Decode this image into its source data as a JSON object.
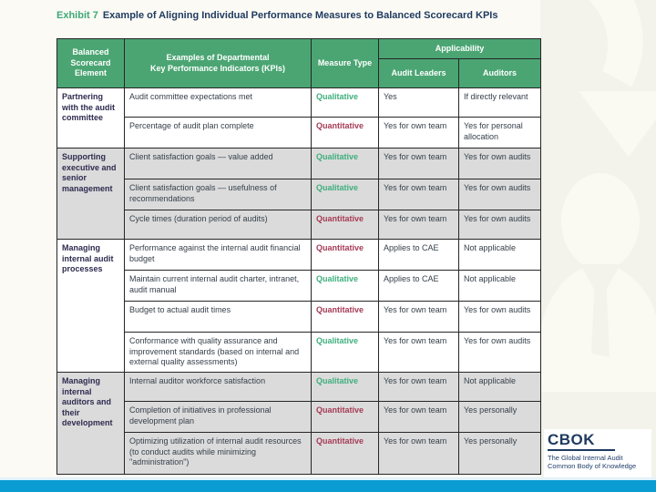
{
  "title": {
    "exhibit_label": "Exhibit 7",
    "text": "Example of Aligning Individual Performance Measures to Balanced Scorecard KPIs"
  },
  "table": {
    "header": {
      "col1": "Balanced Scorecard Element",
      "col2": "Examples of Departmental\nKey Performance Indicators (KPIs)",
      "col3": "Measure Type",
      "applicability": "Applicability",
      "col4": "Audit Leaders",
      "col5": "Auditors"
    },
    "groups": [
      {
        "element": "Partnering with the audit committee",
        "rows": [
          {
            "kpi": "Audit committee expectations met",
            "measure": "Qualitative",
            "audit_leaders": "Yes",
            "auditors": "If directly relevant"
          },
          {
            "kpi": "Percentage of audit plan complete",
            "measure": "Quantitative",
            "audit_leaders": "Yes for own team",
            "auditors": "Yes for personal allocation"
          }
        ]
      },
      {
        "element": "Supporting executive and senior management",
        "rows": [
          {
            "kpi": "Client satisfaction goals — value added",
            "measure": "Qualitative",
            "audit_leaders": "Yes for own team",
            "auditors": "Yes for own audits"
          },
          {
            "kpi": "Client satisfaction goals — usefulness of recommendations",
            "measure": "Qualitative",
            "audit_leaders": "Yes for own team",
            "auditors": "Yes for own audits"
          },
          {
            "kpi": "Cycle times (duration period of audits)",
            "measure": "Quantitative",
            "audit_leaders": "Yes for own team",
            "auditors": "Yes for own audits"
          }
        ]
      },
      {
        "element": "Managing internal audit processes",
        "rows": [
          {
            "kpi": "Performance against the internal audit financial budget",
            "measure": "Quantitative",
            "audit_leaders": "Applies to CAE",
            "auditors": "Not applicable"
          },
          {
            "kpi": "Maintain current internal audit charter, intranet, audit manual",
            "measure": "Qualitative",
            "audit_leaders": "Applies to CAE",
            "auditors": "Not applicable"
          },
          {
            "kpi": "Budget to actual audit times",
            "measure": "Quantitative",
            "audit_leaders": "Yes for own team",
            "auditors": "Yes for own audits"
          },
          {
            "kpi": "Conformance with quality assurance and improvement standards (based on internal and external quality assessments)",
            "measure": "Qualitative",
            "audit_leaders": "Yes for own team",
            "auditors": "Yes for own audits"
          }
        ]
      },
      {
        "element": "Managing internal auditors and their development",
        "rows": [
          {
            "kpi": "Internal auditor workforce satisfaction",
            "measure": "Qualitative",
            "audit_leaders": "Yes for own team",
            "auditors": "Not applicable"
          },
          {
            "kpi": "Completion of initiatives in professional development plan",
            "measure": "Quantitative",
            "audit_leaders": "Yes for own team",
            "auditors": "Yes personally"
          },
          {
            "kpi": "Optimizing utilization of internal audit resources (to conduct audits while minimizing \"administration\")",
            "measure": "Quantitative",
            "audit_leaders": "Yes for own team",
            "auditors": "Yes personally"
          }
        ]
      }
    ]
  },
  "logo": {
    "name": "CBOK",
    "tagline_line1": "The Global Internal Audit",
    "tagline_line2": "Common Body of Knowledge"
  },
  "colors": {
    "header_green": "#4BA573",
    "qualitative_green": "#3FAF7D",
    "quantitative_red": "#A63B55",
    "bottom_bar_blue": "#0B9CD3",
    "title_navy": "#1E3A5F",
    "shaded_row_grey": "#DBDBDB"
  }
}
